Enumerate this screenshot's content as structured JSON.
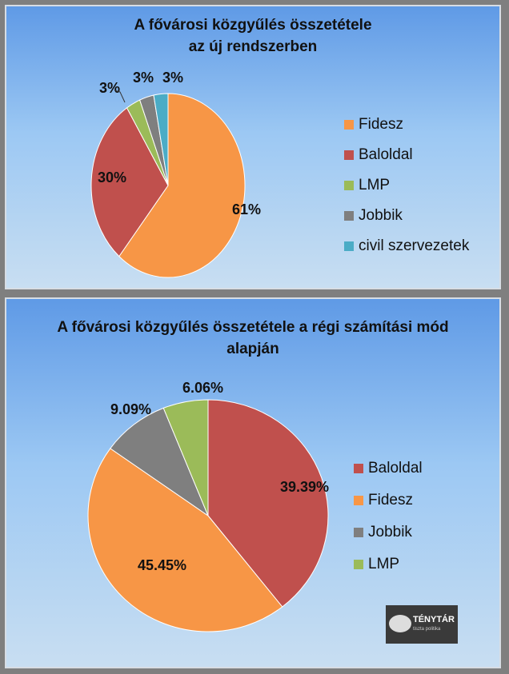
{
  "chart_data": [
    {
      "type": "pie",
      "title": "A fővárosi közgyűlés összetétele az új rendszerben",
      "categories": [
        "Fidesz",
        "Baloldal",
        "LMP",
        "Jobbik",
        "civil szervezetek"
      ],
      "values": [
        61,
        30,
        3,
        3,
        3
      ],
      "labels": [
        "61%",
        "30%",
        "3%",
        "3%",
        "3%"
      ],
      "colors": [
        "#f79646",
        "#c0504d",
        "#9bbb59",
        "#7f7f7f",
        "#4bacc6"
      ],
      "legend": "right"
    },
    {
      "type": "pie",
      "title": "A fővárosi közgyűlés összetétele a régi számítási mód alapján",
      "categories": [
        "Baloldal",
        "Fidesz",
        "Jobbik",
        "LMP"
      ],
      "values": [
        39.39,
        45.45,
        9.09,
        6.06
      ],
      "labels": [
        "39.39%",
        "45.45%",
        "9.09%",
        "6.06%"
      ],
      "colors": [
        "#c0504d",
        "#f79646",
        "#7f7f7f",
        "#9bbb59"
      ],
      "legend": "right"
    }
  ],
  "logo": {
    "text": "TÉNYTÁR",
    "subtext": "tiszta politika"
  }
}
